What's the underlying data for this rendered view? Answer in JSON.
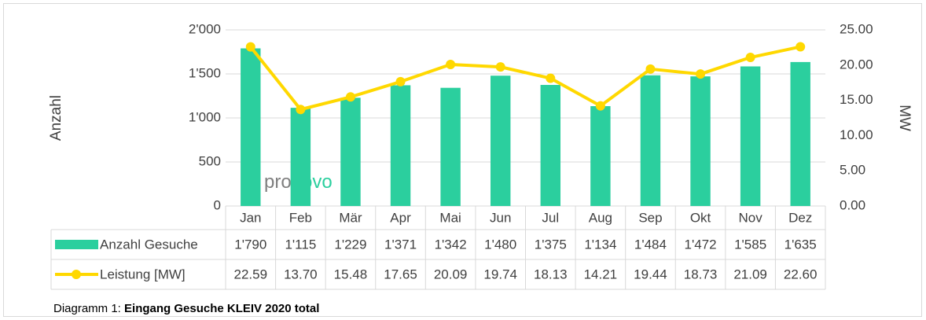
{
  "chart_data": {
    "type": "combo",
    "categories": [
      "Jan",
      "Feb",
      "Mär",
      "Apr",
      "Mai",
      "Jun",
      "Jul",
      "Aug",
      "Sep",
      "Okt",
      "Nov",
      "Dez"
    ],
    "series": [
      {
        "name": "Anzahl Gesuche",
        "type": "bar",
        "color": "#2bcf9e",
        "values": [
          1790,
          1115,
          1229,
          1371,
          1342,
          1480,
          1375,
          1134,
          1484,
          1472,
          1585,
          1635
        ],
        "value_labels": [
          "1'790",
          "1'115",
          "1'229",
          "1'371",
          "1'342",
          "1'480",
          "1'375",
          "1'134",
          "1'484",
          "1'472",
          "1'585",
          "1'635"
        ]
      },
      {
        "name": "Leistung [MW]",
        "type": "line",
        "axis": "y2",
        "color": "#ffd800",
        "values": [
          22.59,
          13.7,
          15.48,
          17.65,
          20.09,
          19.74,
          18.13,
          14.21,
          19.44,
          18.73,
          21.09,
          22.6
        ],
        "value_labels": [
          "22.59",
          "13.70",
          "15.48",
          "17.65",
          "20.09",
          "19.74",
          "18.13",
          "14.21",
          "19.44",
          "18.73",
          "21.09",
          "22.60"
        ]
      }
    ],
    "ylabel": "Anzahl",
    "y2label": "MW",
    "ylim": [
      0,
      2000
    ],
    "yticks": [
      0,
      500,
      {
        "value": 1000,
        "label": "1'000"
      },
      {
        "value": 1500,
        "label": "1'500"
      },
      {
        "value": 2000,
        "label": "2'000"
      }
    ],
    "y2lim": [
      0,
      25
    ],
    "y2ticks": [
      {
        "value": 0,
        "label": "0.00"
      },
      {
        "value": 5,
        "label": "5.00"
      },
      {
        "value": 10,
        "label": "10.00"
      },
      {
        "value": 15,
        "label": "15.00"
      },
      {
        "value": 20,
        "label": "20.00"
      },
      {
        "value": 25,
        "label": "25.00"
      }
    ],
    "grid": true,
    "logo": [
      "pro",
      "novo"
    ],
    "caption": [
      "Diagramm 1: ",
      "Eingang Gesuche KLEIV 2020 total"
    ]
  }
}
